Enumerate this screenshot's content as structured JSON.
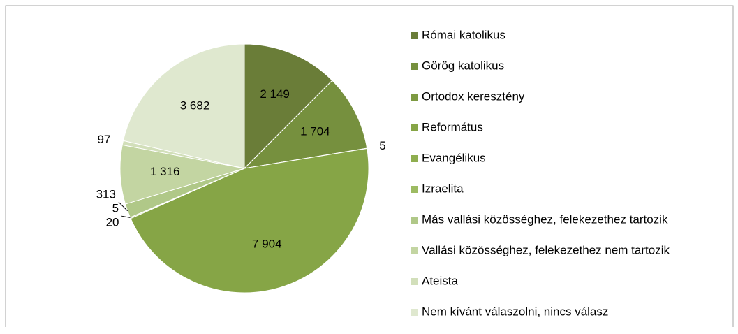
{
  "chart_data": {
    "type": "pie",
    "categories": [
      "Római katolikus",
      "Görög katolikus",
      "Ortodox keresztény",
      "Református",
      "Evangélikus",
      "Izraelita",
      "Más vallási közösséghez, felekezethez tartozik",
      "Vallási közösséghez, felekezethez nem tartozik",
      "Ateista",
      "Nem kívánt válaszolni, nincs válasz"
    ],
    "values": [
      2149,
      1704,
      5,
      7904,
      20,
      5,
      313,
      1316,
      97,
      3682
    ],
    "value_labels": [
      "2 149",
      "1 704",
      "5",
      "7 904",
      "20",
      "5",
      "313",
      "1 316",
      "97",
      "3 682"
    ],
    "colors": [
      "#6a7d38",
      "#76903e",
      "#7d9a41",
      "#86a546",
      "#8fae4f",
      "#9dbb62",
      "#b0c888",
      "#c3d5a2",
      "#d2dfba",
      "#dfe8cf"
    ],
    "legend": "right"
  }
}
